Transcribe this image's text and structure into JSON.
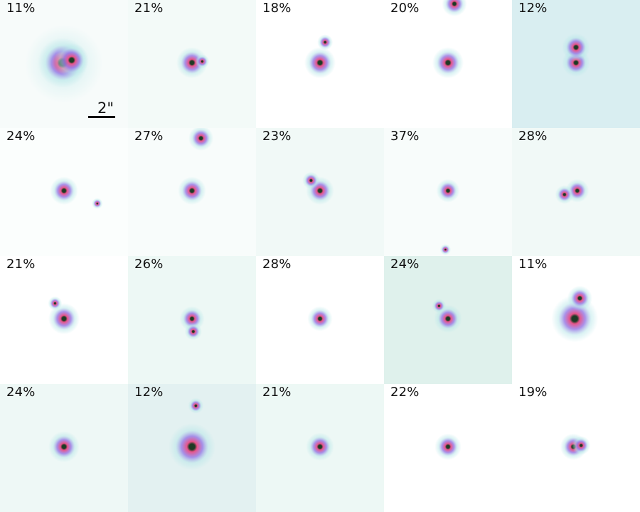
{
  "scalebar": {
    "label": "2\""
  },
  "colors": {
    "core": "#1d3a24",
    "halo_inner": "#e8558a",
    "halo_outer": "#9b7ee6",
    "wing": "#b6e6e8"
  },
  "panels": [
    {
      "label": "11%",
      "bg": "#f7fbfa",
      "stars": [
        [
          0.49,
          0.49,
          1.6
        ],
        [
          0.56,
          0.47,
          1.1
        ]
      ],
      "diffuse": true
    },
    {
      "label": "21%",
      "bg": "#f3faf8",
      "stars": [
        [
          0.5,
          0.49,
          1.0
        ],
        [
          0.58,
          0.48,
          0.45
        ]
      ]
    },
    {
      "label": "18%",
      "bg": "#ffffff",
      "stars": [
        [
          0.5,
          0.49,
          1.0
        ],
        [
          0.54,
          0.33,
          0.5
        ]
      ]
    },
    {
      "label": "20%",
      "bg": "#ffffff",
      "stars": [
        [
          0.5,
          0.49,
          1.0
        ],
        [
          0.55,
          0.03,
          0.8
        ]
      ]
    },
    {
      "label": "12%",
      "bg": "#d9eef1",
      "stars": [
        [
          0.5,
          0.49,
          0.9
        ],
        [
          0.5,
          0.37,
          0.9
        ]
      ]
    },
    {
      "label": "24%",
      "bg": "#fbfefd",
      "stars": [
        [
          0.5,
          0.49,
          0.9
        ],
        [
          0.76,
          0.59,
          0.35
        ]
      ]
    },
    {
      "label": "27%",
      "bg": "#f8fcfb",
      "stars": [
        [
          0.5,
          0.49,
          0.9
        ],
        [
          0.57,
          0.08,
          0.8
        ]
      ]
    },
    {
      "label": "23%",
      "bg": "#f1f9f7",
      "stars": [
        [
          0.5,
          0.49,
          0.9
        ],
        [
          0.43,
          0.41,
          0.55
        ]
      ]
    },
    {
      "label": "37%",
      "bg": "#f8fcfb",
      "stars": [
        [
          0.5,
          0.49,
          0.75
        ],
        [
          0.48,
          0.95,
          0.35
        ]
      ]
    },
    {
      "label": "28%",
      "bg": "#f1f9f7",
      "stars": [
        [
          0.51,
          0.49,
          0.75
        ],
        [
          0.41,
          0.52,
          0.6
        ]
      ]
    },
    {
      "label": "21%",
      "bg": "#ffffff",
      "stars": [
        [
          0.5,
          0.49,
          1.0
        ],
        [
          0.43,
          0.37,
          0.45
        ]
      ]
    },
    {
      "label": "26%",
      "bg": "#edf8f5",
      "stars": [
        [
          0.5,
          0.49,
          0.8
        ],
        [
          0.51,
          0.59,
          0.55
        ]
      ]
    },
    {
      "label": "28%",
      "bg": "#ffffff",
      "stars": [
        [
          0.5,
          0.49,
          0.8
        ]
      ]
    },
    {
      "label": "24%",
      "bg": "#dff1ec",
      "stars": [
        [
          0.5,
          0.49,
          0.9
        ],
        [
          0.43,
          0.39,
          0.45
        ]
      ]
    },
    {
      "label": "11%",
      "bg": "#ffffff",
      "stars": [
        [
          0.49,
          0.49,
          1.5
        ],
        [
          0.53,
          0.33,
          0.8
        ]
      ]
    },
    {
      "label": "24%",
      "bg": "#eef8f6",
      "stars": [
        [
          0.5,
          0.49,
          1.0
        ]
      ]
    },
    {
      "label": "12%",
      "bg": "#e3f1f1",
      "stars": [
        [
          0.5,
          0.49,
          1.5
        ],
        [
          0.53,
          0.17,
          0.5
        ]
      ]
    },
    {
      "label": "21%",
      "bg": "#edf8f5",
      "stars": [
        [
          0.5,
          0.49,
          0.9
        ]
      ]
    },
    {
      "label": "22%",
      "bg": "#ffffff",
      "stars": [
        [
          0.5,
          0.49,
          0.85
        ]
      ]
    },
    {
      "label": "19%",
      "bg": "#ffffff",
      "stars": [
        [
          0.48,
          0.49,
          0.85
        ],
        [
          0.54,
          0.48,
          0.6
        ]
      ]
    }
  ]
}
